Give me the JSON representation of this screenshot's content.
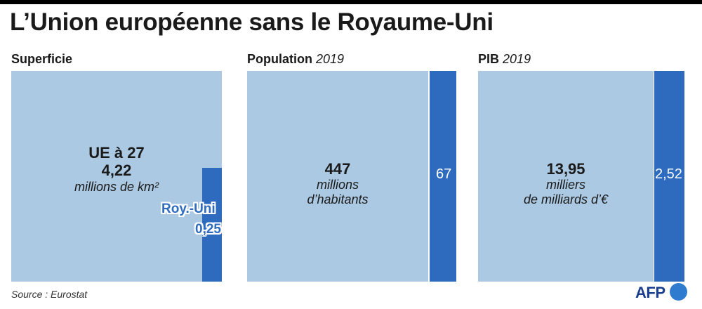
{
  "title": "L’Union européenne sans le Royaume-Uni",
  "source": "Source : Eurostat",
  "logo": "AFP",
  "colors": {
    "eu": "#abc9e2",
    "uk": "#2e6bbf"
  },
  "panels": {
    "area": {
      "label": "Superficie",
      "year": "",
      "eu_name": "UE à 27",
      "eu_value": "4,22",
      "eu_unit": "millions de km²",
      "uk_name": "Roy.-Uni",
      "uk_value": "0,25"
    },
    "population": {
      "label": "Population",
      "year": "2019",
      "eu_value": "447",
      "eu_unit_1": "millions",
      "eu_unit_2": "d’habitants",
      "uk_value": "67"
    },
    "gdp": {
      "label": "PIB",
      "year": "2019",
      "eu_value": "13,95",
      "eu_unit_1": "milliers",
      "eu_unit_2": "de milliards d’€",
      "uk_value": "2,52"
    }
  },
  "chart_data": [
    {
      "type": "area",
      "title": "Superficie",
      "unit": "millions de km²",
      "series": [
        {
          "name": "UE à 27",
          "value": 4.22
        },
        {
          "name": "Roy.-Uni",
          "value": 0.25
        }
      ]
    },
    {
      "type": "bar",
      "title": "Population 2019",
      "unit": "millions d’habitants",
      "series": [
        {
          "name": "UE à 27",
          "value": 447
        },
        {
          "name": "Roy.-Uni",
          "value": 67
        }
      ]
    },
    {
      "type": "bar",
      "title": "PIB 2019",
      "unit": "milliers de milliards d’€",
      "series": [
        {
          "name": "UE à 27",
          "value": 13.95
        },
        {
          "name": "Roy.-Uni",
          "value": 2.52
        }
      ]
    }
  ]
}
